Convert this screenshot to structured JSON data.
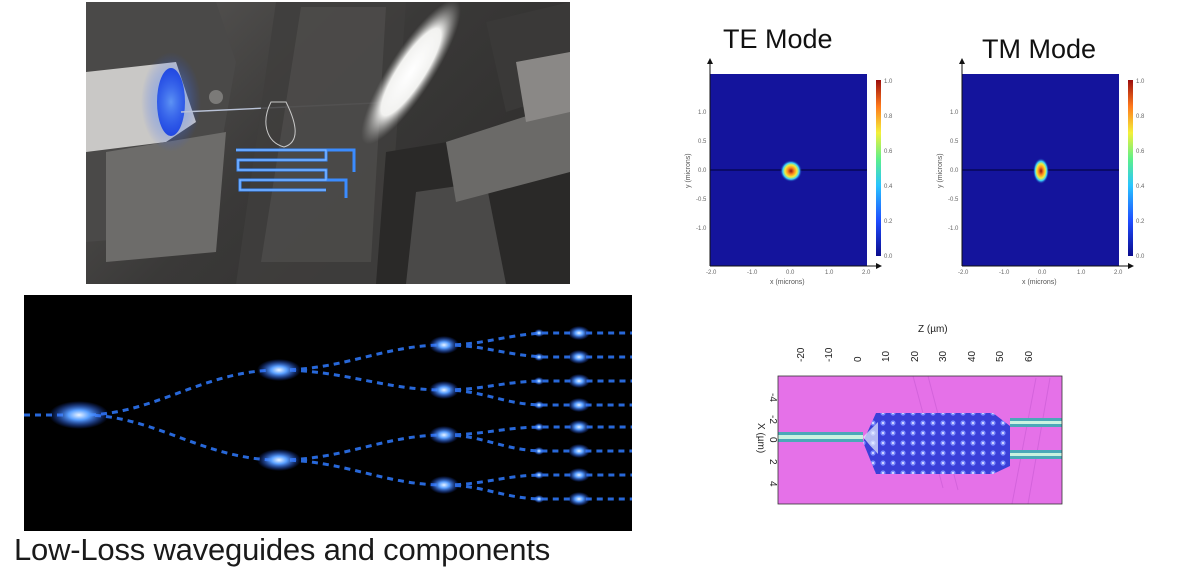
{
  "caption": "Low-Loss waveguides and components",
  "te_mode": {
    "title": "TE Mode",
    "xlabel": "x (microns)",
    "ylabel": "y (microns)",
    "colorbar_ticks": [
      "1.0",
      "0.8",
      "0.6",
      "0.4",
      "0.2",
      "0.0"
    ],
    "x_ticks": [
      "-2.0",
      "-1.0",
      "0.0",
      "1.0",
      "2.0"
    ],
    "y_ticks": [
      "1.0",
      "0.5",
      "0.0",
      "-0.5",
      "-1.0"
    ]
  },
  "tm_mode": {
    "title": "TM Mode",
    "xlabel": "x (microns)",
    "ylabel": "y (microns)",
    "colorbar_ticks": [
      "1.0",
      "0.8",
      "0.6",
      "0.4",
      "0.2",
      "0.0"
    ],
    "x_ticks": [
      "-2.0",
      "-1.0",
      "0.0",
      "1.0",
      "2.0"
    ],
    "y_ticks": [
      "1.0",
      "0.5",
      "0.0",
      "-0.5",
      "-1.0"
    ]
  },
  "simulation": {
    "xlabel": "Z (µm)",
    "ylabel": "X (µm)",
    "z_ticks": [
      "-20",
      "-10",
      "0",
      "10",
      "20",
      "30",
      "40",
      "50",
      "60"
    ],
    "x_ticks": [
      "-4",
      "-2",
      "0",
      "2",
      "4"
    ]
  },
  "colors": {
    "mode_background": "#14149c",
    "sim_background": "#e571e8",
    "waveguide_glow": "#2f7bff"
  }
}
